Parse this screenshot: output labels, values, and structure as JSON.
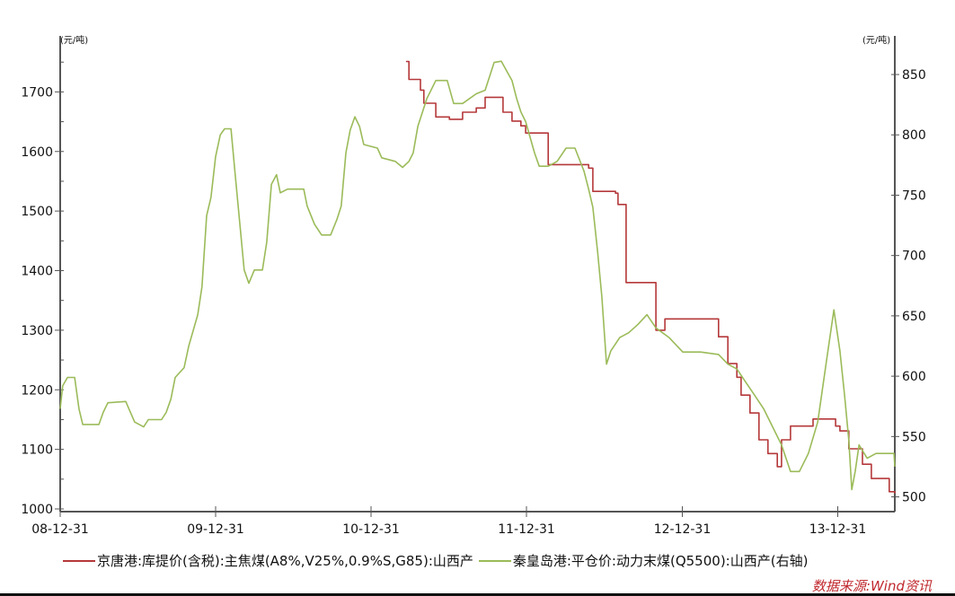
{
  "chart_data": {
    "type": "line",
    "title": "",
    "left_axis": {
      "unit": "(元/吨)",
      "ylim": [
        1000,
        1794
      ],
      "ticks": [
        1000,
        1100,
        1200,
        1300,
        1400,
        1500,
        1600,
        1700
      ]
    },
    "right_axis": {
      "unit": "(元/吨)",
      "ylim": [
        490,
        882
      ],
      "ticks": [
        500,
        550,
        600,
        650,
        700,
        750,
        800,
        850
      ]
    },
    "x_axis": {
      "range": [
        "2008-12-31",
        "2014-05-14"
      ],
      "ticks": [
        "2008-12-31",
        "2009-12-31",
        "2010-12-31",
        "2011-12-31",
        "2012-12-31",
        "2013-12-31"
      ],
      "tick_labels": [
        "08-12-31",
        "09-12-31",
        "10-12-31",
        "11-12-31",
        "12-12-31",
        "13-12-31"
      ]
    },
    "grid": false,
    "legend_position": "bottom",
    "series": [
      {
        "name": "京唐港:库提价(含税):主焦煤(A8%,V25%,0.9%S,G85):山西产",
        "axis": "left",
        "color": "#b5383a",
        "style": "step",
        "points": [
          [
            "2011-03-23",
            1751
          ],
          [
            "2011-03-30",
            1721
          ],
          [
            "2011-04-26",
            1703
          ],
          [
            "2011-05-04",
            1681
          ],
          [
            "2011-06-01",
            1658
          ],
          [
            "2011-07-03",
            1654
          ],
          [
            "2011-08-03",
            1666
          ],
          [
            "2011-09-04",
            1673
          ],
          [
            "2011-09-25",
            1691
          ],
          [
            "2011-10-31",
            1691
          ],
          [
            "2011-11-06",
            1666
          ],
          [
            "2011-11-27",
            1651
          ],
          [
            "2011-12-18",
            1643
          ],
          [
            "2011-12-29",
            1631
          ],
          [
            "2012-02-15",
            1631
          ],
          [
            "2012-02-20",
            1578
          ],
          [
            "2012-05-25",
            1572
          ],
          [
            "2012-06-04",
            1533
          ],
          [
            "2012-07-27",
            1530
          ],
          [
            "2012-08-02",
            1511
          ],
          [
            "2012-08-21",
            1380
          ],
          [
            "2012-10-23",
            1380
          ],
          [
            "2012-10-30",
            1300
          ],
          [
            "2012-11-20",
            1319
          ],
          [
            "2013-03-16",
            1319
          ],
          [
            "2013-03-26",
            1289
          ],
          [
            "2013-04-17",
            1244
          ],
          [
            "2013-05-08",
            1221
          ],
          [
            "2013-05-18",
            1191
          ],
          [
            "2013-06-08",
            1161
          ],
          [
            "2013-06-29",
            1116
          ],
          [
            "2013-07-20",
            1093
          ],
          [
            "2013-08-11",
            1071
          ],
          [
            "2013-08-21",
            1116
          ],
          [
            "2013-09-11",
            1139
          ],
          [
            "2013-11-03",
            1151
          ],
          [
            "2013-12-26",
            1139
          ],
          [
            "2014-01-05",
            1131
          ],
          [
            "2014-01-26",
            1101
          ],
          [
            "2014-02-27",
            1075
          ],
          [
            "2014-03-20",
            1051
          ],
          [
            "2014-04-21",
            1051
          ],
          [
            "2014-05-01",
            1029
          ],
          [
            "2014-05-14",
            1026
          ]
        ]
      },
      {
        "name": "秦皇岛港:平仓价:动力末煤(Q5500):山西产(右轴)",
        "axis": "right",
        "color": "#9bbb59",
        "style": "line",
        "points": [
          [
            "2008-12-31",
            573
          ],
          [
            "2009-01-06",
            592
          ],
          [
            "2009-01-17",
            599
          ],
          [
            "2009-02-03",
            599
          ],
          [
            "2009-02-13",
            573
          ],
          [
            "2009-02-22",
            560
          ],
          [
            "2009-04-01",
            560
          ],
          [
            "2009-04-11",
            570
          ],
          [
            "2009-04-22",
            578
          ],
          [
            "2009-06-03",
            579
          ],
          [
            "2009-06-14",
            570
          ],
          [
            "2009-06-24",
            562
          ],
          [
            "2009-07-15",
            558
          ],
          [
            "2009-07-26",
            564
          ],
          [
            "2009-08-26",
            564
          ],
          [
            "2009-09-06",
            570
          ],
          [
            "2009-09-17",
            581
          ],
          [
            "2009-09-27",
            599
          ],
          [
            "2009-10-18",
            607
          ],
          [
            "2009-10-29",
            625
          ],
          [
            "2009-11-19",
            651
          ],
          [
            "2009-11-29",
            674
          ],
          [
            "2009-12-10",
            733
          ],
          [
            "2009-12-20",
            748
          ],
          [
            "2009-12-31",
            782
          ],
          [
            "2010-01-11",
            800
          ],
          [
            "2010-01-21",
            805
          ],
          [
            "2010-02-05",
            805
          ],
          [
            "2010-02-15",
            767
          ],
          [
            "2010-02-26",
            726
          ],
          [
            "2010-03-08",
            688
          ],
          [
            "2010-03-19",
            677
          ],
          [
            "2010-04-01",
            688
          ],
          [
            "2010-04-20",
            688
          ],
          [
            "2010-04-30",
            711
          ],
          [
            "2010-05-11",
            759
          ],
          [
            "2010-05-23",
            767
          ],
          [
            "2010-06-01",
            752
          ],
          [
            "2010-06-18",
            755
          ],
          [
            "2010-07-26",
            755
          ],
          [
            "2010-08-03",
            741
          ],
          [
            "2010-08-20",
            726
          ],
          [
            "2010-09-06",
            717
          ],
          [
            "2010-09-27",
            717
          ],
          [
            "2010-10-12",
            730
          ],
          [
            "2010-10-22",
            741
          ],
          [
            "2010-11-02",
            785
          ],
          [
            "2010-11-12",
            804
          ],
          [
            "2010-11-23",
            815
          ],
          [
            "2010-12-04",
            807
          ],
          [
            "2010-12-14",
            792
          ],
          [
            "2011-01-15",
            789
          ],
          [
            "2011-01-25",
            781
          ],
          [
            "2011-02-26",
            778
          ],
          [
            "2011-03-15",
            773
          ],
          [
            "2011-03-30",
            778
          ],
          [
            "2011-04-09",
            785
          ],
          [
            "2011-04-20",
            807
          ],
          [
            "2011-05-11",
            830
          ],
          [
            "2011-06-01",
            845
          ],
          [
            "2011-06-28",
            845
          ],
          [
            "2011-07-13",
            826
          ],
          [
            "2011-08-03",
            826
          ],
          [
            "2011-09-04",
            834
          ],
          [
            "2011-09-25",
            837
          ],
          [
            "2011-10-16",
            860
          ],
          [
            "2011-11-02",
            861
          ],
          [
            "2011-11-27",
            845
          ],
          [
            "2011-12-08",
            830
          ],
          [
            "2011-12-18",
            819
          ],
          [
            "2011-12-29",
            811
          ],
          [
            "2012-01-19",
            785
          ],
          [
            "2012-01-30",
            774
          ],
          [
            "2012-02-20",
            774
          ],
          [
            "2012-03-12",
            778
          ],
          [
            "2012-04-02",
            789
          ],
          [
            "2012-04-23",
            789
          ],
          [
            "2012-05-14",
            770
          ],
          [
            "2012-05-25",
            755
          ],
          [
            "2012-06-04",
            740
          ],
          [
            "2012-06-15",
            703
          ],
          [
            "2012-06-25",
            666
          ],
          [
            "2012-07-06",
            610
          ],
          [
            "2012-07-16",
            621
          ],
          [
            "2012-08-06",
            632
          ],
          [
            "2012-08-27",
            636
          ],
          [
            "2012-09-18",
            643
          ],
          [
            "2012-10-09",
            651
          ],
          [
            "2012-10-30",
            640
          ],
          [
            "2012-11-30",
            632
          ],
          [
            "2013-01-01",
            620
          ],
          [
            "2013-02-12",
            620
          ],
          [
            "2013-03-26",
            618
          ],
          [
            "2013-04-17",
            610
          ],
          [
            "2013-05-08",
            606
          ],
          [
            "2013-05-29",
            595
          ],
          [
            "2013-06-19",
            584
          ],
          [
            "2013-07-10",
            573
          ],
          [
            "2013-07-31",
            558
          ],
          [
            "2013-08-21",
            543
          ],
          [
            "2013-09-11",
            521
          ],
          [
            "2013-10-02",
            521
          ],
          [
            "2013-10-23",
            536
          ],
          [
            "2013-11-14",
            562
          ],
          [
            "2013-12-05",
            614
          ],
          [
            "2013-12-22",
            655
          ],
          [
            "2014-01-05",
            621
          ],
          [
            "2014-01-16",
            584
          ],
          [
            "2014-01-26",
            547
          ],
          [
            "2014-02-02",
            506
          ],
          [
            "2014-02-10",
            521
          ],
          [
            "2014-02-19",
            543
          ],
          [
            "2014-03-10",
            532
          ],
          [
            "2014-03-31",
            536
          ],
          [
            "2014-05-12",
            536
          ],
          [
            "2014-05-14",
            525
          ]
        ]
      }
    ]
  },
  "source": "数据来源:Wind资讯"
}
